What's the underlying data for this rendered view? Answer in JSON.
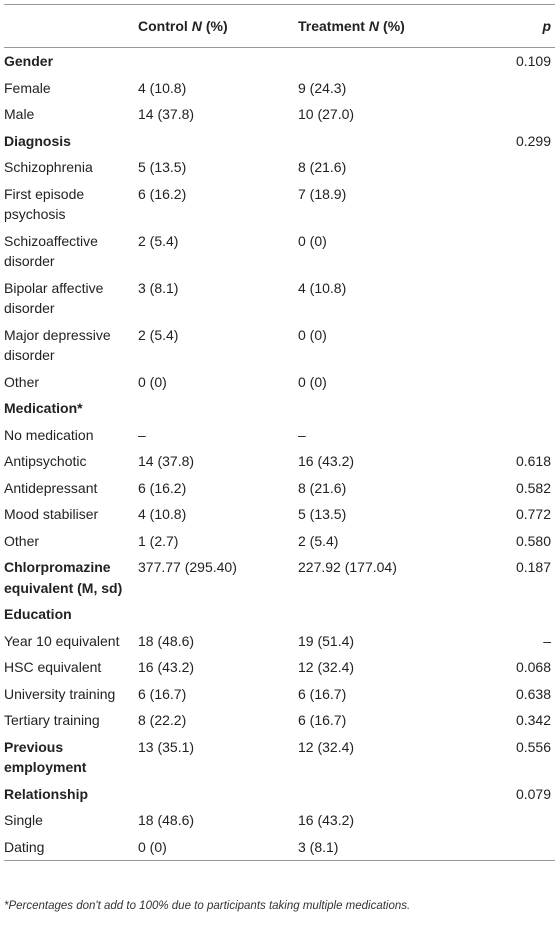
{
  "table": {
    "header": {
      "control": [
        "Control",
        "N",
        "(%)"
      ],
      "treatment": [
        "Treatment",
        "N",
        "(%)"
      ],
      "p": "p"
    },
    "rows": [
      {
        "label": "Gender",
        "bold": true,
        "p": "0.109"
      },
      {
        "label": "Female",
        "control": "4 (10.8)",
        "treatment": "9 (24.3)"
      },
      {
        "label": "Male",
        "control": "14 (37.8)",
        "treatment": "10 (27.0)"
      },
      {
        "label": "Diagnosis",
        "bold": true,
        "p": "0.299"
      },
      {
        "label": "Schizophrenia",
        "control": "5 (13.5)",
        "treatment": "8 (21.6)"
      },
      {
        "label": "First episode psychosis",
        "control": "6 (16.2)",
        "treatment": "7 (18.9)"
      },
      {
        "label": "Schizoaffective disorder",
        "control": "2 (5.4)",
        "treatment": "0 (0)"
      },
      {
        "label": "Bipolar affective disorder",
        "control": "3 (8.1)",
        "treatment": "4 (10.8)"
      },
      {
        "label": "Major depressive disorder",
        "control": "2 (5.4)",
        "treatment": "0 (0)"
      },
      {
        "label": "Other",
        "control": "0 (0)",
        "treatment": "0 (0)"
      },
      {
        "label": "Medication*",
        "bold": true
      },
      {
        "label": "No medication",
        "control": "–",
        "treatment": "–"
      },
      {
        "label": "Antipsychotic",
        "control": "14 (37.8)",
        "treatment": "16 (43.2)",
        "p": "0.618"
      },
      {
        "label": "Antidepressant",
        "control": "6 (16.2)",
        "treatment": "8 (21.6)",
        "p": "0.582"
      },
      {
        "label": "Mood stabiliser",
        "control": "4 (10.8)",
        "treatment": "5 (13.5)",
        "p": "0.772"
      },
      {
        "label": "Other",
        "control": "1 (2.7)",
        "treatment": "2 (5.4)",
        "p": "0.580"
      },
      {
        "label": "Chlorpromazine equivalent (M, sd)",
        "bold": true,
        "control": "377.77 (295.40)",
        "treatment": "227.92 (177.04)",
        "p": "0.187"
      },
      {
        "label": "Education",
        "bold": true
      },
      {
        "label": "Year 10 equivalent",
        "control": "18 (48.6)",
        "treatment": "19 (51.4)",
        "p": "–"
      },
      {
        "label": "HSC equivalent",
        "control": "16 (43.2)",
        "treatment": "12 (32.4)",
        "p": "0.068"
      },
      {
        "label": "University training",
        "control": "6 (16.7)",
        "treatment": "6 (16.7)",
        "p": "0.638"
      },
      {
        "label": "Tertiary training",
        "control": "8 (22.2)",
        "treatment": "6 (16.7)",
        "p": "0.342"
      },
      {
        "label": "Previous employment",
        "bold": true,
        "control": "13 (35.1)",
        "treatment": "12 (32.4)",
        "p": "0.556"
      },
      {
        "label": "Relationship",
        "bold": true,
        "p": "0.079"
      },
      {
        "label": "Single",
        "control": "18 (48.6)",
        "treatment": "16 (43.2)"
      },
      {
        "label": "Dating",
        "control": "0 (0)",
        "treatment": "3 (8.1)"
      }
    ],
    "footnote": "*Percentages don't add to 100% due to participants taking multiple medications."
  }
}
